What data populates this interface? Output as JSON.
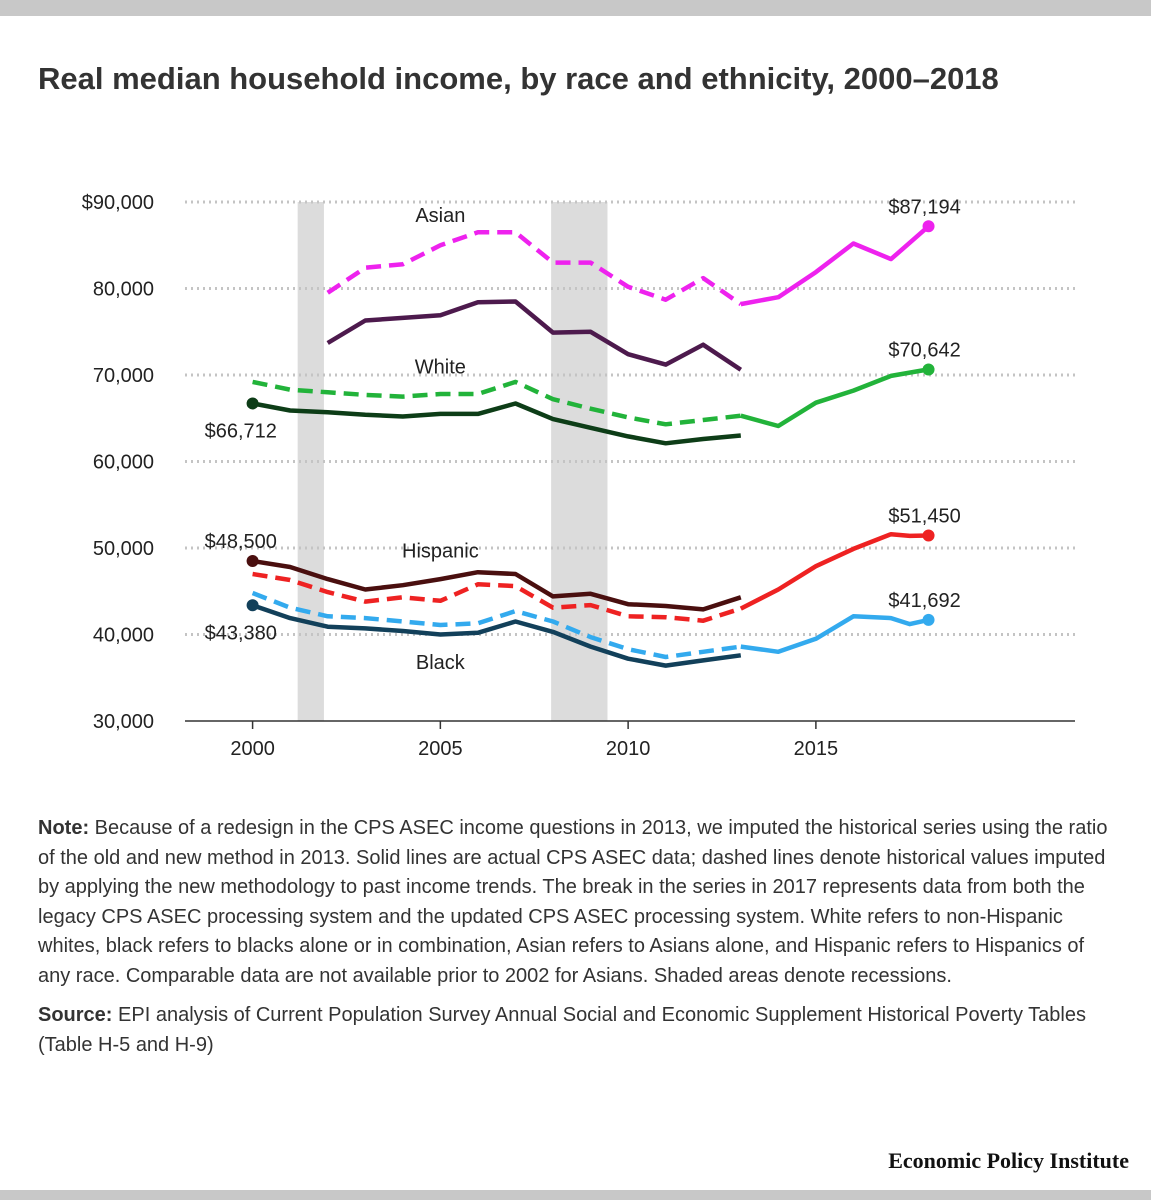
{
  "chart_data": {
    "type": "line",
    "title": "Real median household income, by race and ethnicity, 2000–2018",
    "xlabel": "",
    "ylabel": "",
    "xlim": [
      1998.2,
      2021.9
    ],
    "ylim": [
      30000,
      90000
    ],
    "x_ticks": [
      2000,
      2005,
      2010,
      2015
    ],
    "x_tick_labels": [
      "2000",
      "2005",
      "2010",
      "2015"
    ],
    "y_ticks": [
      30000,
      40000,
      50000,
      60000,
      70000,
      80000,
      90000
    ],
    "y_tick_labels": [
      "30,000",
      "40,000",
      "50,000",
      "60,000",
      "70,000",
      "80,000",
      "$90,000"
    ],
    "recessions": [
      {
        "start": 2001.2,
        "end": 2001.9
      },
      {
        "start": 2007.95,
        "end": 2009.45
      }
    ],
    "series": [
      {
        "name": "Asian",
        "group": "Asian",
        "style": "dashed",
        "color": "#ee22ee",
        "x": [
          2002,
          2003,
          2004,
          2005,
          2006,
          2007,
          2008,
          2009,
          2010,
          2011,
          2012,
          2013
        ],
        "values": [
          79500,
          82400,
          82800,
          85000,
          86500,
          86500,
          83000,
          83000,
          80200,
          78700,
          81200,
          78200
        ]
      },
      {
        "name": "Asian",
        "group": "Asian",
        "style": "solid",
        "color": "#ee22ee",
        "x": [
          2013,
          2014,
          2015,
          2016,
          2017,
          2017.5,
          2018
        ],
        "values": [
          78200,
          79000,
          81900,
          85200,
          83400,
          85300,
          87194
        ]
      },
      {
        "name": "Asian (legacy)",
        "group": "Asian",
        "style": "solid",
        "color": "#4d1a4d",
        "x": [
          2002,
          2003,
          2004,
          2005,
          2006,
          2007,
          2008,
          2009,
          2010,
          2011,
          2012,
          2013
        ],
        "values": [
          73700,
          76300,
          76600,
          76900,
          78400,
          78500,
          74900,
          75000,
          72400,
          71200,
          73500,
          70600
        ]
      },
      {
        "name": "White",
        "group": "White",
        "style": "dashed",
        "color": "#22b33a",
        "x": [
          2000,
          2001,
          2002,
          2003,
          2004,
          2005,
          2006,
          2007,
          2008,
          2009,
          2010,
          2011,
          2012,
          2013
        ],
        "values": [
          69200,
          68300,
          68000,
          67700,
          67500,
          67800,
          67800,
          69200,
          67200,
          66100,
          65100,
          64300,
          64800,
          65300
        ]
      },
      {
        "name": "White",
        "group": "White",
        "style": "solid",
        "color": "#22b33a",
        "x": [
          2013,
          2014,
          2015,
          2016,
          2017,
          2018
        ],
        "values": [
          65300,
          64100,
          66800,
          68200,
          69900,
          70642
        ]
      },
      {
        "name": "White (legacy)",
        "group": "White",
        "style": "solid",
        "color": "#0d3d17",
        "x": [
          2000,
          2001,
          2002,
          2003,
          2004,
          2005,
          2006,
          2007,
          2008,
          2009,
          2010,
          2011,
          2012,
          2013
        ],
        "values": [
          66712,
          65900,
          65700,
          65400,
          65200,
          65500,
          65500,
          66700,
          64900,
          63900,
          62900,
          62100,
          62600,
          63000
        ]
      },
      {
        "name": "Hispanic",
        "group": "Hispanic",
        "style": "dashed",
        "color": "#ee2222",
        "x": [
          2000,
          2001,
          2002,
          2003,
          2004,
          2005,
          2006,
          2007,
          2008,
          2009,
          2010,
          2011,
          2012,
          2013
        ],
        "values": [
          47000,
          46300,
          44900,
          43800,
          44300,
          43900,
          45800,
          45600,
          43100,
          43400,
          42100,
          42000,
          41600,
          43000
        ]
      },
      {
        "name": "Hispanic",
        "group": "Hispanic",
        "style": "solid",
        "color": "#ee2222",
        "x": [
          2013,
          2014,
          2015,
          2016,
          2017,
          2017.5,
          2018
        ],
        "values": [
          43000,
          45200,
          47900,
          49900,
          51600,
          51400,
          51450
        ]
      },
      {
        "name": "Hispanic (legacy)",
        "group": "Hispanic",
        "style": "solid",
        "color": "#4a0f0f",
        "x": [
          2000,
          2001,
          2002,
          2003,
          2004,
          2005,
          2006,
          2007,
          2008,
          2009,
          2010,
          2011,
          2012,
          2013
        ],
        "values": [
          48500,
          47800,
          46400,
          45200,
          45700,
          46400,
          47200,
          47000,
          44400,
          44700,
          43500,
          43300,
          42900,
          44300
        ]
      },
      {
        "name": "Black",
        "group": "Black",
        "style": "dashed",
        "color": "#33aaee",
        "x": [
          2000,
          2001,
          2002,
          2003,
          2004,
          2005,
          2006,
          2007,
          2008,
          2009,
          2010,
          2011,
          2012,
          2013
        ],
        "values": [
          44800,
          43100,
          42100,
          41900,
          41500,
          41100,
          41300,
          42700,
          41500,
          39700,
          38300,
          37400,
          38000,
          38600
        ]
      },
      {
        "name": "Black",
        "group": "Black",
        "style": "solid",
        "color": "#33aaee",
        "x": [
          2013,
          2014,
          2015,
          2016,
          2017,
          2017.5,
          2018
        ],
        "values": [
          38600,
          38000,
          39500,
          42100,
          41900,
          41200,
          41692
        ]
      },
      {
        "name": "Black (legacy)",
        "group": "Black",
        "style": "solid",
        "color": "#12405a",
        "x": [
          2000,
          2001,
          2002,
          2003,
          2004,
          2005,
          2006,
          2007,
          2008,
          2009,
          2010,
          2011,
          2012,
          2013
        ],
        "values": [
          43380,
          41900,
          40900,
          40700,
          40400,
          40000,
          40200,
          41500,
          40300,
          38600,
          37200,
          36400,
          37000,
          37600
        ]
      }
    ],
    "endpoints": [
      {
        "series": "White (legacy)",
        "x": 2000,
        "value": 66712,
        "label": "$66,712",
        "color": "#0d3d17"
      },
      {
        "series": "Hispanic (legacy)",
        "x": 2000,
        "value": 48500,
        "label": "$48,500",
        "color": "#4a0f0f"
      },
      {
        "series": "Black (legacy)",
        "x": 2000,
        "value": 43380,
        "label": "$43,380",
        "color": "#12405a"
      },
      {
        "series": "Asian",
        "x": 2018,
        "value": 87194,
        "label": "$87,194",
        "color": "#ee22ee"
      },
      {
        "series": "White",
        "x": 2018,
        "value": 70642,
        "label": "$70,642",
        "color": "#22b33a"
      },
      {
        "series": "Hispanic",
        "x": 2018,
        "value": 51450,
        "label": "$51,450",
        "color": "#ee2222"
      },
      {
        "series": "Black",
        "x": 2018,
        "value": 41692,
        "label": "$41,692",
        "color": "#33aaee"
      }
    ],
    "series_labels": [
      {
        "text": "Asian",
        "x": 2005,
        "value": 87700
      },
      {
        "text": "White",
        "x": 2005,
        "value": 70200
      },
      {
        "text": "Hispanic",
        "x": 2005,
        "value": 48900
      },
      {
        "text": "Black",
        "x": 2005,
        "value": 36000
      }
    ]
  },
  "notes": {
    "note_label": "Note:",
    "note_text": " Because of a redesign in the CPS ASEC income questions in 2013, we imputed the historical series using the ratio of the old and new method in 2013. Solid lines are actual CPS ASEC data; dashed lines denote historical values imputed by applying the new methodology to past income trends. The break in the series in 2017 represents data from both the legacy CPS ASEC processing system and the updated CPS ASEC processing system. White refers to non-Hispanic whites, black refers to blacks alone or in combination, Asian refers to Asians alone, and Hispanic refers to Hispanics of any race. Comparable data are not available prior to 2002 for Asians. Shaded areas denote recessions.",
    "source_label": "Source:",
    "source_text": " EPI analysis of Current Population Survey Annual Social and Economic Supplement Historical Poverty Tables (Table H-5 and H-9)"
  },
  "brand": "Economic Policy Institute"
}
